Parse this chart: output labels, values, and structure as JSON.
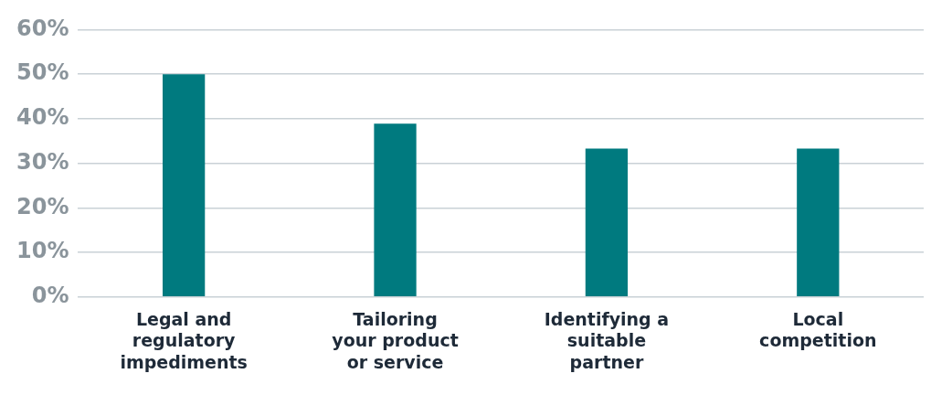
{
  "chart_data": {
    "type": "bar",
    "categories": [
      "Legal and regulatory impediments",
      "Tailoring your product or service",
      "Identifying a suitable partner",
      "Local competition"
    ],
    "values": [
      50,
      38.9,
      33.3,
      33.3
    ],
    "color": "#007a7f",
    "ylim": [
      0,
      60
    ],
    "yticks": [
      {
        "value": 0,
        "label": "0%"
      },
      {
        "value": 10,
        "label": "10%"
      },
      {
        "value": 20,
        "label": "20%"
      },
      {
        "value": 30,
        "label": "30%"
      },
      {
        "value": 40,
        "label": "40%"
      },
      {
        "value": 50,
        "label": "50%"
      },
      {
        "value": 60,
        "label": "60%"
      }
    ],
    "grid": "y",
    "legend": false
  }
}
